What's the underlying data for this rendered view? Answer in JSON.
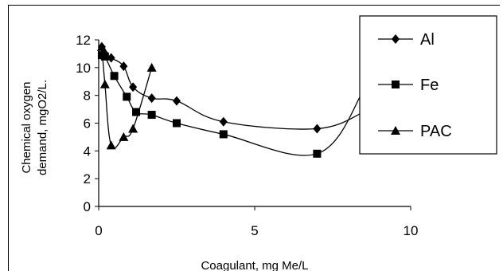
{
  "chart_data": {
    "type": "line",
    "xlabel": "Coagulant, mg Me/L",
    "ylabel_lines": [
      "Chemical oxygen",
      "demand, mgO2/L."
    ],
    "xlim": [
      0,
      10
    ],
    "ylim": [
      0,
      12
    ],
    "xticks": [
      0,
      5,
      10
    ],
    "yticks": [
      0,
      2,
      4,
      6,
      8,
      10,
      12
    ],
    "grid": false,
    "legend_position": "right",
    "series": [
      {
        "name": "Al",
        "marker": "diamond",
        "color": "#000000",
        "x": [
          0.1,
          0.2,
          0.4,
          0.8,
          1.1,
          1.7,
          2.5,
          4.0,
          7.0,
          8.5
        ],
        "y": [
          11.5,
          11.0,
          10.7,
          10.1,
          8.6,
          7.8,
          7.6,
          6.1,
          5.6,
          6.8
        ]
      },
      {
        "name": "Fe",
        "marker": "square",
        "color": "#000000",
        "x": [
          0.1,
          0.2,
          0.5,
          0.9,
          1.2,
          1.7,
          2.5,
          4.0,
          7.0,
          8.5
        ],
        "y": [
          10.9,
          10.8,
          9.4,
          7.9,
          6.8,
          6.6,
          6.0,
          5.2,
          3.8,
          8.4
        ]
      },
      {
        "name": "PAC",
        "marker": "triangle",
        "color": "#000000",
        "x": [
          0.1,
          0.2,
          0.4,
          0.8,
          1.1,
          1.7
        ],
        "y": [
          11.5,
          8.8,
          4.4,
          5.0,
          5.6,
          10.0
        ]
      }
    ]
  }
}
